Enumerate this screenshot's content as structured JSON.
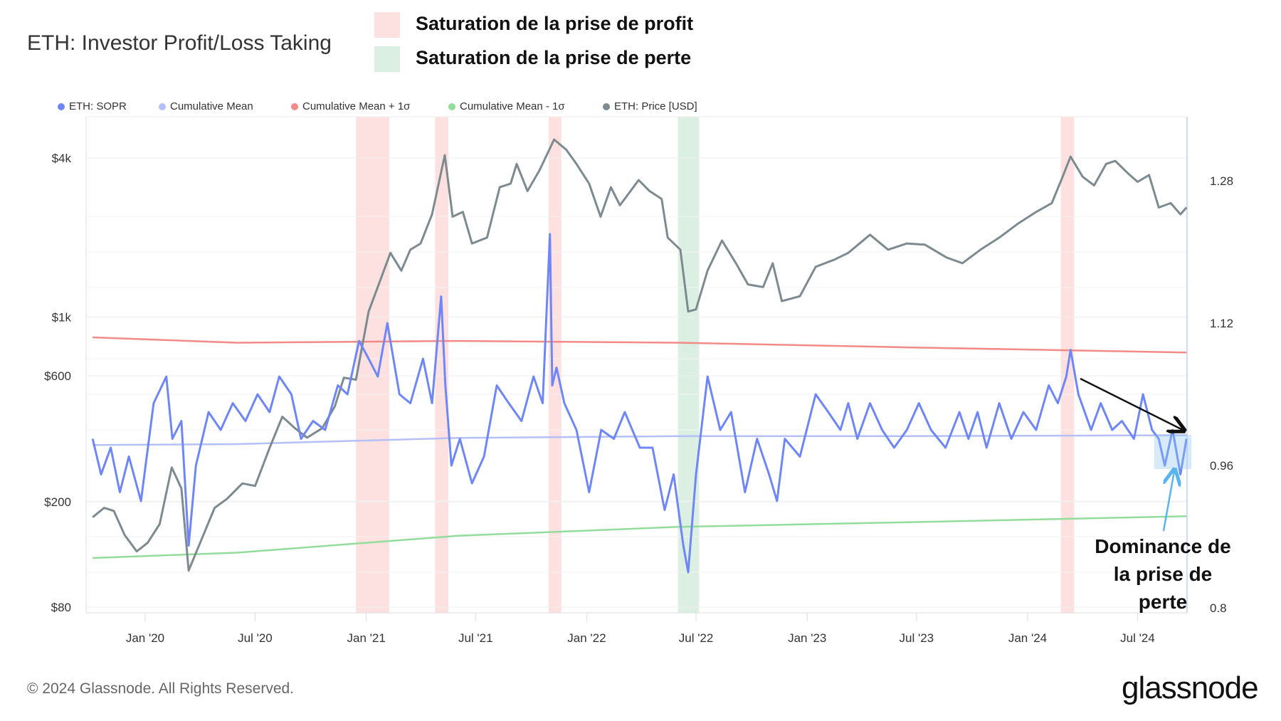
{
  "chart_data": {
    "type": "line",
    "title": "ETH: Investor Profit/Loss Taking",
    "band_legend": [
      {
        "label": "Saturation de la prise de profit",
        "color": "#fde0e0"
      },
      {
        "label": "Saturation de la prise de perte",
        "color": "#dcefe3"
      }
    ],
    "legend": [
      {
        "name": "ETH: SOPR",
        "color": "#6f87f6"
      },
      {
        "name": "Cumulative Mean",
        "color": "#b4c0f7"
      },
      {
        "name": "Cumulative Mean + 1σ",
        "color": "#f28b87"
      },
      {
        "name": "Cumulative Mean - 1σ",
        "color": "#93dd9c"
      },
      {
        "name": "ETH: Price [USD]",
        "color": "#7d8b90"
      }
    ],
    "legend_position": "top-left",
    "x_range": [
      "2019-10-06",
      "2024-09-20"
    ],
    "x_ticks": [
      "Jan '20",
      "Jul '20",
      "Jan '21",
      "Jul '21",
      "Jan '22",
      "Jul '22",
      "Jan '23",
      "Jul '23",
      "Jan '24",
      "Jul '24"
    ],
    "x_tick_dates": [
      "2020-01-01",
      "2020-07-01",
      "2021-01-01",
      "2021-07-01",
      "2022-01-01",
      "2022-07-01",
      "2023-01-01",
      "2023-07-01",
      "2024-01-01",
      "2024-07-01"
    ],
    "y_left": {
      "scale": "log",
      "ticks": [
        4000,
        1000,
        600,
        200,
        80
      ],
      "tick_labels": [
        "$4k",
        "$1k",
        "$600",
        "$200",
        "$80"
      ],
      "range": [
        78,
        5200
      ]
    },
    "y_right": {
      "scale": "linear",
      "ticks": [
        1.28,
        1.12,
        0.96,
        0.8
      ],
      "tick_labels": [
        "1.28",
        "1.12",
        "0.96",
        "0.8"
      ],
      "range": [
        0.794,
        1.352
      ]
    },
    "grid": true,
    "bands": [
      {
        "type": "profit",
        "start": "2020-12-15",
        "end": "2021-02-08"
      },
      {
        "type": "profit",
        "start": "2021-04-25",
        "end": "2021-05-17"
      },
      {
        "type": "profit",
        "start": "2021-10-30",
        "end": "2021-11-20"
      },
      {
        "type": "loss",
        "start": "2022-06-01",
        "end": "2022-07-06"
      },
      {
        "type": "profit",
        "start": "2024-02-25",
        "end": "2024-03-18"
      }
    ],
    "series": [
      {
        "name": "ETH: Price [USD]",
        "axis": "left",
        "x": [
          "2019-10-06",
          "2019-10-25",
          "2019-11-10",
          "2019-11-28",
          "2019-12-18",
          "2020-01-05",
          "2020-01-25",
          "2020-02-14",
          "2020-03-01",
          "2020-03-13",
          "2020-04-01",
          "2020-04-25",
          "2020-05-15",
          "2020-06-10",
          "2020-07-01",
          "2020-07-25",
          "2020-08-15",
          "2020-09-05",
          "2020-09-25",
          "2020-10-20",
          "2020-11-10",
          "2020-11-25",
          "2020-12-15",
          "2021-01-05",
          "2021-01-20",
          "2021-02-10",
          "2021-02-28",
          "2021-03-15",
          "2021-04-01",
          "2021-04-20",
          "2021-05-11",
          "2021-05-24",
          "2021-06-10",
          "2021-06-25",
          "2021-07-20",
          "2021-08-10",
          "2021-08-28",
          "2021-09-07",
          "2021-09-25",
          "2021-10-15",
          "2021-11-08",
          "2021-11-28",
          "2021-12-15",
          "2022-01-05",
          "2022-01-24",
          "2022-02-10",
          "2022-02-25",
          "2022-03-28",
          "2022-04-15",
          "2022-05-05",
          "2022-05-15",
          "2022-06-05",
          "2022-06-18",
          "2022-07-01",
          "2022-07-20",
          "2022-08-13",
          "2022-09-05",
          "2022-09-25",
          "2022-10-20",
          "2022-11-05",
          "2022-11-20",
          "2022-12-20",
          "2023-01-15",
          "2023-02-15",
          "2023-03-10",
          "2023-04-15",
          "2023-05-15",
          "2023-06-15",
          "2023-07-15",
          "2023-08-20",
          "2023-09-15",
          "2023-10-15",
          "2023-11-15",
          "2023-12-15",
          "2024-01-15",
          "2024-02-10",
          "2024-02-28",
          "2024-03-12",
          "2024-04-01",
          "2024-04-20",
          "2024-05-10",
          "2024-05-25",
          "2024-06-15",
          "2024-07-01",
          "2024-07-20",
          "2024-08-05",
          "2024-08-25",
          "2024-09-10",
          "2024-09-20"
        ],
        "values": [
          175,
          190,
          185,
          150,
          130,
          140,
          165,
          270,
          225,
          110,
          140,
          190,
          205,
          235,
          230,
          320,
          420,
          380,
          350,
          380,
          460,
          590,
          580,
          1050,
          1300,
          1750,
          1500,
          1800,
          1900,
          2450,
          4100,
          2400,
          2500,
          1900,
          2000,
          3100,
          3200,
          3800,
          3000,
          3600,
          4700,
          4300,
          3800,
          3200,
          2400,
          3100,
          2650,
          3300,
          3000,
          2800,
          2000,
          1800,
          1050,
          1070,
          1500,
          1950,
          1600,
          1330,
          1300,
          1600,
          1150,
          1200,
          1550,
          1650,
          1750,
          2050,
          1800,
          1900,
          1880,
          1680,
          1600,
          1800,
          2000,
          2250,
          2500,
          2700,
          3400,
          4050,
          3400,
          3150,
          3800,
          3900,
          3500,
          3250,
          3450,
          2600,
          2700,
          2450,
          2600
        ]
      },
      {
        "name": "ETH: SOPR",
        "axis": "right",
        "x": [
          "2019-10-06",
          "2019-10-20",
          "2019-11-05",
          "2019-11-20",
          "2019-12-05",
          "2019-12-25",
          "2020-01-15",
          "2020-02-05",
          "2020-02-15",
          "2020-03-01",
          "2020-03-13",
          "2020-03-25",
          "2020-04-15",
          "2020-05-05",
          "2020-05-25",
          "2020-06-15",
          "2020-07-05",
          "2020-07-25",
          "2020-08-10",
          "2020-08-30",
          "2020-09-15",
          "2020-10-05",
          "2020-10-25",
          "2020-11-15",
          "2020-12-01",
          "2020-12-20",
          "2021-01-05",
          "2021-01-20",
          "2021-02-05",
          "2021-02-25",
          "2021-03-15",
          "2021-04-05",
          "2021-04-20",
          "2021-05-05",
          "2021-05-12",
          "2021-05-22",
          "2021-06-05",
          "2021-06-25",
          "2021-07-15",
          "2021-08-05",
          "2021-08-25",
          "2021-09-15",
          "2021-10-05",
          "2021-10-20",
          "2021-11-01",
          "2021-11-05",
          "2021-11-12",
          "2021-11-25",
          "2021-12-15",
          "2022-01-05",
          "2022-01-25",
          "2022-02-15",
          "2022-03-05",
          "2022-03-30",
          "2022-04-20",
          "2022-05-10",
          "2022-05-25",
          "2022-06-10",
          "2022-06-18",
          "2022-07-01",
          "2022-07-20",
          "2022-08-10",
          "2022-08-28",
          "2022-09-20",
          "2022-10-10",
          "2022-10-30",
          "2022-11-12",
          "2022-11-25",
          "2022-12-20",
          "2023-01-15",
          "2023-02-05",
          "2023-02-25",
          "2023-03-10",
          "2023-03-25",
          "2023-04-15",
          "2023-05-05",
          "2023-05-25",
          "2023-06-15",
          "2023-07-05",
          "2023-07-25",
          "2023-08-18",
          "2023-09-10",
          "2023-09-25",
          "2023-10-10",
          "2023-10-25",
          "2023-11-15",
          "2023-12-05",
          "2023-12-25",
          "2024-01-15",
          "2024-02-05",
          "2024-02-20",
          "2024-03-05",
          "2024-03-12",
          "2024-03-25",
          "2024-04-15",
          "2024-05-01",
          "2024-05-20",
          "2024-06-05",
          "2024-06-25",
          "2024-07-10",
          "2024-07-25",
          "2024-08-05",
          "2024-08-15",
          "2024-08-28",
          "2024-09-10",
          "2024-09-20"
        ],
        "values": [
          0.99,
          0.95,
          0.98,
          0.93,
          0.97,
          0.92,
          1.03,
          1.06,
          0.99,
          1.01,
          0.87,
          0.96,
          1.02,
          1.0,
          1.03,
          1.01,
          1.04,
          1.02,
          1.06,
          1.04,
          0.99,
          1.01,
          1.0,
          1.05,
          1.04,
          1.1,
          1.08,
          1.06,
          1.12,
          1.04,
          1.03,
          1.08,
          1.03,
          1.15,
          1.05,
          0.96,
          0.99,
          0.94,
          0.97,
          1.05,
          1.03,
          1.01,
          1.06,
          1.03,
          1.22,
          1.05,
          1.07,
          1.03,
          1.0,
          0.93,
          1.0,
          0.99,
          1.02,
          0.98,
          0.98,
          0.91,
          0.95,
          0.87,
          0.84,
          0.95,
          1.06,
          1.0,
          1.02,
          0.93,
          0.99,
          0.95,
          0.92,
          0.99,
          0.97,
          1.04,
          1.02,
          1.0,
          1.03,
          0.99,
          1.03,
          1.0,
          0.98,
          1.0,
          1.03,
          1.0,
          0.98,
          1.02,
          0.99,
          1.02,
          0.98,
          1.03,
          0.99,
          1.02,
          1.0,
          1.05,
          1.03,
          1.06,
          1.09,
          1.04,
          1.0,
          1.03,
          1.0,
          1.01,
          0.99,
          1.04,
          1.0,
          0.99,
          0.96,
          1.0,
          0.95,
          0.99
        ]
      },
      {
        "name": "Cumulative Mean",
        "axis": "right",
        "x": [
          "2019-10-06",
          "2020-06-01",
          "2021-06-01",
          "2022-06-01",
          "2023-06-01",
          "2024-09-20"
        ],
        "values": [
          0.983,
          0.984,
          0.991,
          0.993,
          0.993,
          0.994
        ]
      },
      {
        "name": "Cumulative Mean + 1σ",
        "axis": "right",
        "x": [
          "2019-10-06",
          "2020-06-01",
          "2021-06-01",
          "2022-06-01",
          "2023-06-01",
          "2024-09-20"
        ],
        "values": [
          1.104,
          1.098,
          1.1,
          1.098,
          1.093,
          1.087
        ]
      },
      {
        "name": "Cumulative Mean - 1σ",
        "axis": "right",
        "x": [
          "2019-10-06",
          "2020-06-01",
          "2021-06-01",
          "2022-06-01",
          "2023-06-01",
          "2024-09-20"
        ],
        "values": [
          0.856,
          0.862,
          0.881,
          0.891,
          0.896,
          0.903
        ]
      }
    ],
    "annotations": [
      {
        "text": "Dominance de la prise de perte",
        "lines": [
          "Dominance de",
          "la prise de perte"
        ]
      }
    ]
  },
  "footer": {
    "copyright": "© 2024 Glassnode. All Rights Reserved.",
    "logo": "glassnode"
  }
}
